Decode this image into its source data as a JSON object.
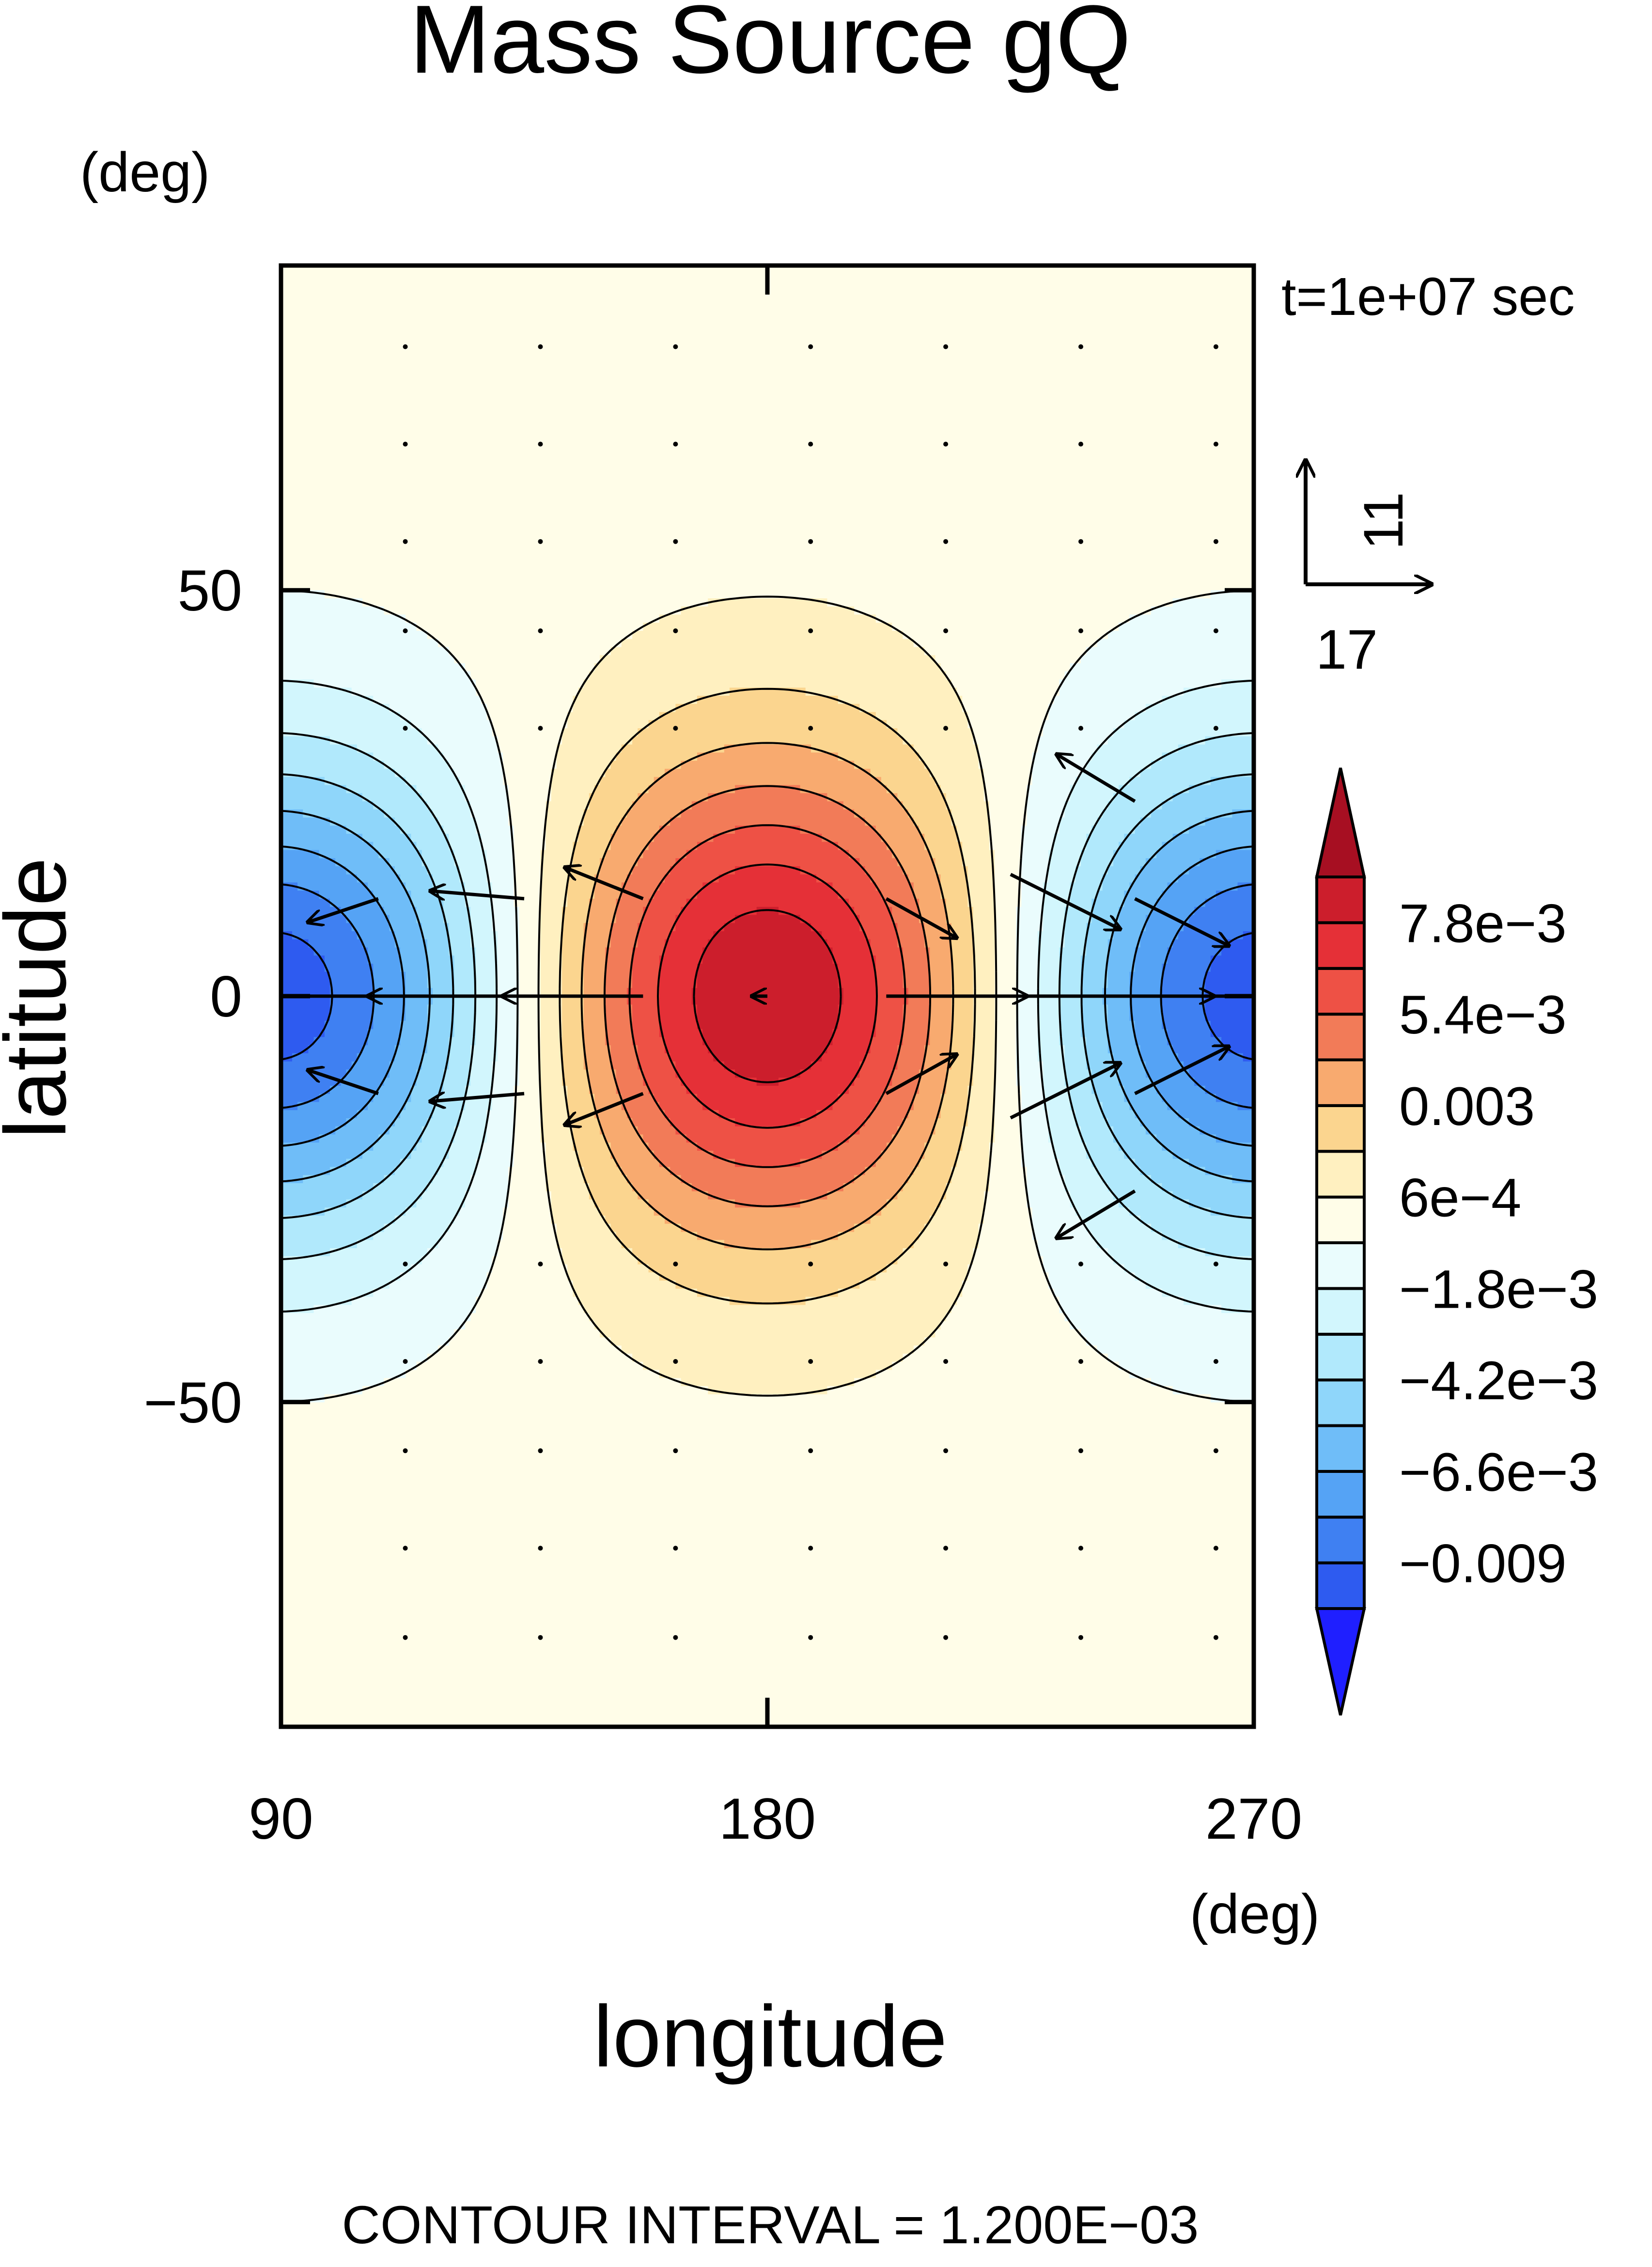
{
  "chart_data": {
    "type": "heatmap",
    "title": "Mass Source gQ",
    "xlabel": "longitude",
    "ylabel": "latitude",
    "x_unit_label": "(deg)",
    "y_unit_label": "(deg)",
    "xlim": [
      90,
      270
    ],
    "ylim": [
      -90,
      90
    ],
    "x_ticks": [
      90,
      180,
      270
    ],
    "y_ticks": [
      50,
      0,
      -50
    ],
    "x_tick_labels": [
      "90",
      "180",
      "270"
    ],
    "y_tick_labels": [
      "50",
      "0",
      "−50"
    ],
    "time_label": "t=1e+07 sec",
    "vector_reference": {
      "u_label": "17",
      "v_label": "11",
      "u": 17,
      "v": 11
    },
    "contour_interval_label": "CONTOUR INTERVAL = 1.200E−03",
    "contour_interval": 0.0012,
    "field": {
      "description": "Gaussian mass source/sink centered on equator",
      "source_center": [
        180,
        0
      ],
      "source_amplitude": 0.0092,
      "sink_centers": [
        [
          90,
          0
        ],
        [
          270,
          0
        ]
      ],
      "sink_amplitude": -0.0098,
      "lon_halfwidth_deg": 45,
      "lat_halfwidth_deg": 30
    },
    "colorbar": {
      "levels": [
        -0.0102,
        -0.009,
        -0.0078,
        -0.0066,
        -0.0054,
        -0.0042,
        -0.003,
        -0.0018,
        -0.0006,
        0.0006,
        0.0018,
        0.003,
        0.0042,
        0.0054,
        0.0066,
        0.0078,
        0.009
      ],
      "colors": [
        "#1f1fff",
        "#2e5bf0",
        "#3f80f2",
        "#55a3f5",
        "#6fbdf8",
        "#8fd6fa",
        "#b1e9fc",
        "#d2f6fd",
        "#eafcfd",
        "#fffde8",
        "#fff0c0",
        "#fbd58f",
        "#f8aa6f",
        "#f27b58",
        "#ee5145",
        "#e53037",
        "#cc1e2c",
        "#a70f22"
      ],
      "tick_labels": [
        "7.8e−3",
        "5.4e−3",
        "0.003",
        "6e−4",
        "−1.8e−3",
        "−4.2e−3",
        "−6.6e−3",
        "−0.009"
      ],
      "tick_values": [
        0.0078,
        0.0054,
        0.003,
        0.0006,
        -0.0018,
        -0.0042,
        -0.0066,
        -0.009
      ]
    },
    "vectors": [
      {
        "lon": 108,
        "lat": 12,
        "u": -9,
        "v": -3
      },
      {
        "lon": 108,
        "lat": -12,
        "u": -9,
        "v": 3
      },
      {
        "lon": 108,
        "lat": 0,
        "u": -16,
        "v": 0
      },
      {
        "lon": 135,
        "lat": 0,
        "u": -20,
        "v": 0
      },
      {
        "lon": 135,
        "lat": 12,
        "u": -12,
        "v": 1
      },
      {
        "lon": 135,
        "lat": -12,
        "u": -12,
        "v": -1
      },
      {
        "lon": 157,
        "lat": 0,
        "u": -18,
        "v": 0
      },
      {
        "lon": 157,
        "lat": 12,
        "u": -10,
        "v": 4
      },
      {
        "lon": 157,
        "lat": -12,
        "u": -10,
        "v": -4
      },
      {
        "lon": 180,
        "lat": 0,
        "u": -2,
        "v": 0
      },
      {
        "lon": 202,
        "lat": 0,
        "u": 18,
        "v": 0
      },
      {
        "lon": 202,
        "lat": 12,
        "u": 9,
        "v": -5
      },
      {
        "lon": 202,
        "lat": -12,
        "u": 9,
        "v": 5
      },
      {
        "lon": 225,
        "lat": 0,
        "u": 26,
        "v": 0
      },
      {
        "lon": 225,
        "lat": 15,
        "u": 14,
        "v": -7
      },
      {
        "lon": 225,
        "lat": -15,
        "u": 14,
        "v": 7
      },
      {
        "lon": 248,
        "lat": 0,
        "u": 22,
        "v": 0
      },
      {
        "lon": 248,
        "lat": 12,
        "u": 12,
        "v": -6
      },
      {
        "lon": 248,
        "lat": -12,
        "u": 12,
        "v": 6
      },
      {
        "lon": 248,
        "lat": 24,
        "u": -10,
        "v": 6
      },
      {
        "lon": 248,
        "lat": -24,
        "u": -10,
        "v": -6
      }
    ]
  }
}
